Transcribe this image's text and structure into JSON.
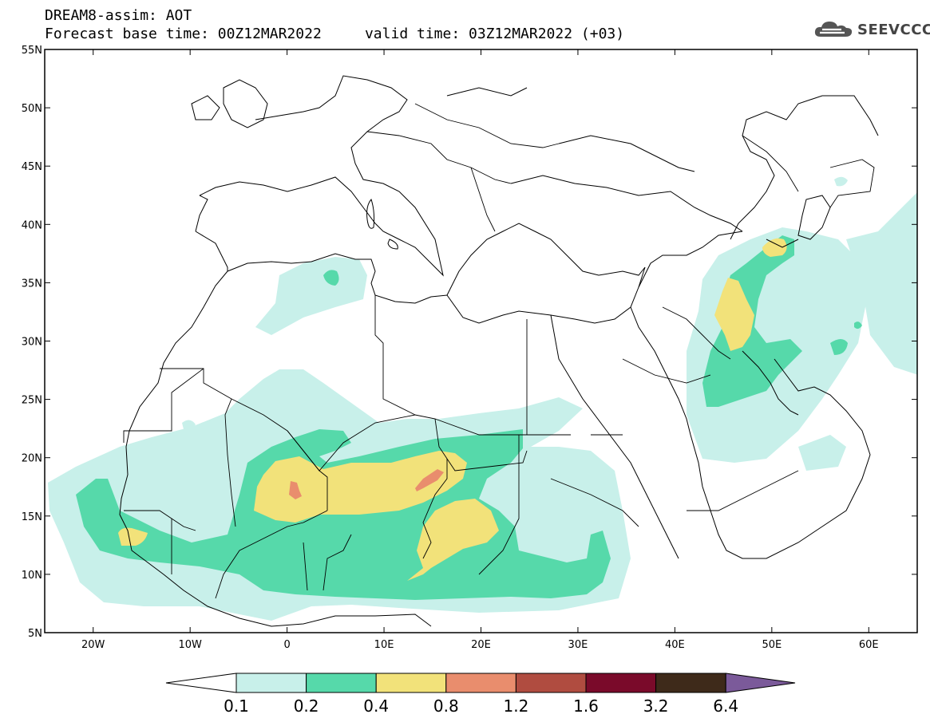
{
  "header": {
    "title_line1": "DREAM8-assim: AOT",
    "title_line2": "Forecast base time: 00Z12MAR2022     valid time: 03Z12MAR2022 (+03)",
    "logo_text": "SEEVCCC",
    "logo_icon": "cloud-icon"
  },
  "map": {
    "lat_labels": [
      "55N",
      "50N",
      "45N",
      "40N",
      "35N",
      "30N",
      "25N",
      "20N",
      "15N",
      "10N",
      "5N"
    ],
    "lon_labels": [
      "20W",
      "10W",
      "0",
      "10E",
      "20E",
      "30E",
      "40E",
      "50E",
      "60E"
    ],
    "lat_range": [
      5,
      55
    ],
    "lon_range": [
      -25,
      65
    ]
  },
  "colorbar": {
    "thresholds": [
      "0.1",
      "0.2",
      "0.4",
      "0.8",
      "1.2",
      "1.6",
      "3.2",
      "6.4"
    ],
    "colors": [
      "#ffffff",
      "#c8f0ea",
      "#56d9aa",
      "#f2e27a",
      "#e98d6d",
      "#b04c40",
      "#7a0a2a",
      "#3e2a1a",
      "#7b5a9a"
    ]
  },
  "chart_data": {
    "type": "heatmap",
    "title": "DREAM8-assim: AOT",
    "variable": "AOT",
    "base_time": "00Z12MAR2022",
    "valid_time": "03Z12MAR2022 (+03)",
    "xlim": [
      -25,
      65
    ],
    "ylim": [
      5,
      55
    ],
    "levels": [
      0.1,
      0.2,
      0.4,
      0.8,
      1.2,
      1.6,
      3.2,
      6.4
    ]
  }
}
